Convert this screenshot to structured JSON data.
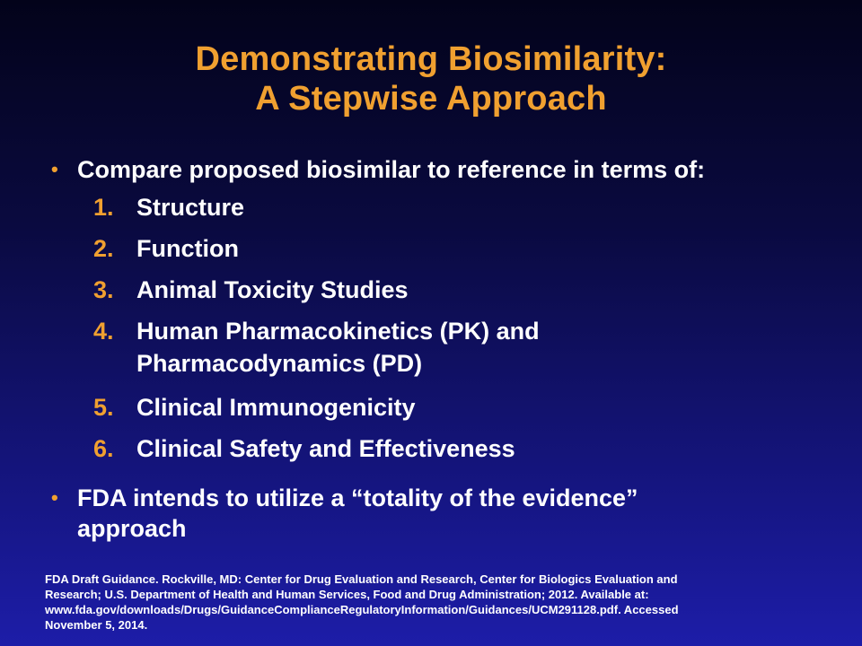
{
  "slide": {
    "title_line1": "Demonstrating Biosimilarity:",
    "title_line2": "A Stepwise Approach",
    "bullet1": {
      "marker": "•",
      "text": "Compare proposed biosimilar to reference in terms of:"
    },
    "items": [
      {
        "num": "1.",
        "text": "Structure"
      },
      {
        "num": "2.",
        "text": "Function"
      },
      {
        "num": "3.",
        "text": "Animal Toxicity Studies"
      },
      {
        "num": "4.",
        "text_line1": "Human Pharmacokinetics (PK) and",
        "text_line2": "Pharmacodynamics (PD)"
      },
      {
        "num": "5.",
        "text": "Clinical Immunogenicity"
      },
      {
        "num": "6.",
        "text": "Clinical Safety and Effectiveness"
      }
    ],
    "bullet2": {
      "marker": "•",
      "text_line1": "FDA intends to utilize a “totality of the evidence”",
      "text_line2": "approach"
    },
    "footnote_lines": [
      "FDA Draft Guidance.  Rockville, MD: Center for Drug Evaluation and Research, Center for Biologics Evaluation and",
      "Research; U.S. Department of Health and Human Services, Food and Drug Administration;  2012.  Available at:",
      "www.fda.gov/downloads/Drugs/GuidanceComplianceRegulatoryInformation/Guidances/UCM291128.pdf. Accessed",
      "November 5, 2014."
    ],
    "colors": {
      "accent": "#f0a030",
      "text": "#ffffff",
      "background_top": "#03031a",
      "background_bottom": "#1d1da8"
    }
  }
}
